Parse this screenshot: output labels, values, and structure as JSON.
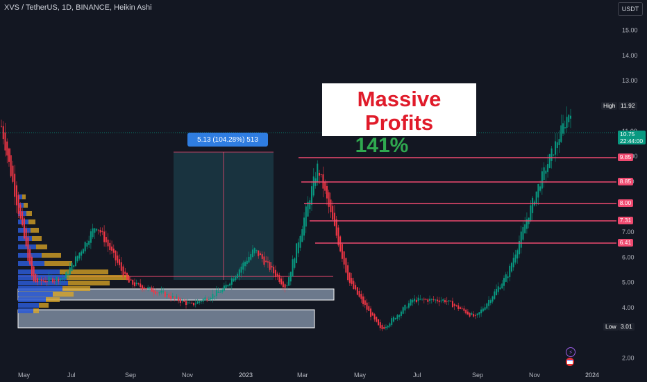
{
  "header": {
    "symbol_title": "XVS / TetherUS, 1D, BINANCE, Heikin Ashi",
    "currency_label": "USDT"
  },
  "annotation": {
    "title": "Massive Profits",
    "subtitle": "141%"
  },
  "measure": {
    "label": "5.13 (104.28%) 513"
  },
  "price_axis": {
    "ticks": [
      "15.00",
      "14.00",
      "13.00",
      "11.00",
      "10.00",
      "9.00",
      "7.00",
      "6.00",
      "5.00",
      "4.00",
      "2.00"
    ],
    "high_label": "High",
    "high_value": "11.92",
    "low_label": "Low",
    "low_value": "3.01",
    "last_price": "10.75",
    "countdown": "22:44:00",
    "levels": [
      "9.85",
      "8.85",
      "8.00",
      "7.31",
      "6.41"
    ]
  },
  "time_axis": {
    "labels": [
      "May",
      "Jul",
      "Sep",
      "Nov",
      "2023",
      "Mar",
      "May",
      "Jul",
      "Sep",
      "Nov",
      "2024"
    ]
  },
  "colors": {
    "background": "#131722",
    "up": "#089981",
    "down": "#f23645",
    "level_line": "#ef4a70",
    "measure": "#2f7de1"
  },
  "chart_data": {
    "type": "candlestick",
    "price_range": [
      1.6,
      16.2
    ],
    "key_points": [
      {
        "x": "May 2022",
        "y": 11.2
      },
      {
        "x": "Jun 2022",
        "y": 5.0
      },
      {
        "x": "Jul 2022",
        "y": 5.2
      },
      {
        "x": "Aug 2022",
        "y": 7.3
      },
      {
        "x": "Sep 2022",
        "y": 5.0
      },
      {
        "x": "Nov 2022",
        "y": 4.6
      },
      {
        "x": "Dec 2022",
        "y": 4.1
      },
      {
        "x": "Jan 2023",
        "y": 4.7
      },
      {
        "x": "Feb 2023",
        "y": 6.3
      },
      {
        "x": "Mar 2023",
        "y": 4.8
      },
      {
        "x": "Apr 2023",
        "y": 9.6
      },
      {
        "x": "May 2023",
        "y": 5.0
      },
      {
        "x": "Jun 2023",
        "y": 3.1
      },
      {
        "x": "Jul 2023",
        "y": 4.3
      },
      {
        "x": "Aug 2023",
        "y": 4.3
      },
      {
        "x": "Sep 2023",
        "y": 3.6
      },
      {
        "x": "Oct 2023",
        "y": 5.3
      },
      {
        "x": "Nov 2023",
        "y": 8.9
      },
      {
        "x": "Dec 2023",
        "y": 11.9
      }
    ]
  }
}
